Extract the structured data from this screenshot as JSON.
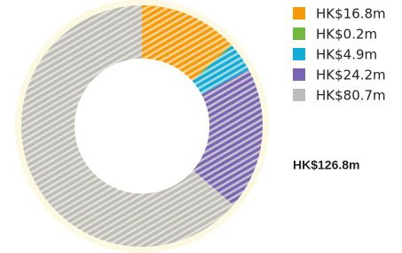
{
  "chart_data": {
    "type": "donut",
    "values": [
      16.8,
      0.2,
      4.9,
      24.2,
      80.7
    ],
    "value_labels": [
      "HK$16.8m",
      "HK$0.2m",
      "HK$4.9m",
      "HK$24.2m",
      "HK$80.7m"
    ],
    "colors": [
      "#f59a0c",
      "#72b83e",
      "#12acd8",
      "#7866b4",
      "#bcbcbc"
    ],
    "total": "HK$126.8m"
  }
}
